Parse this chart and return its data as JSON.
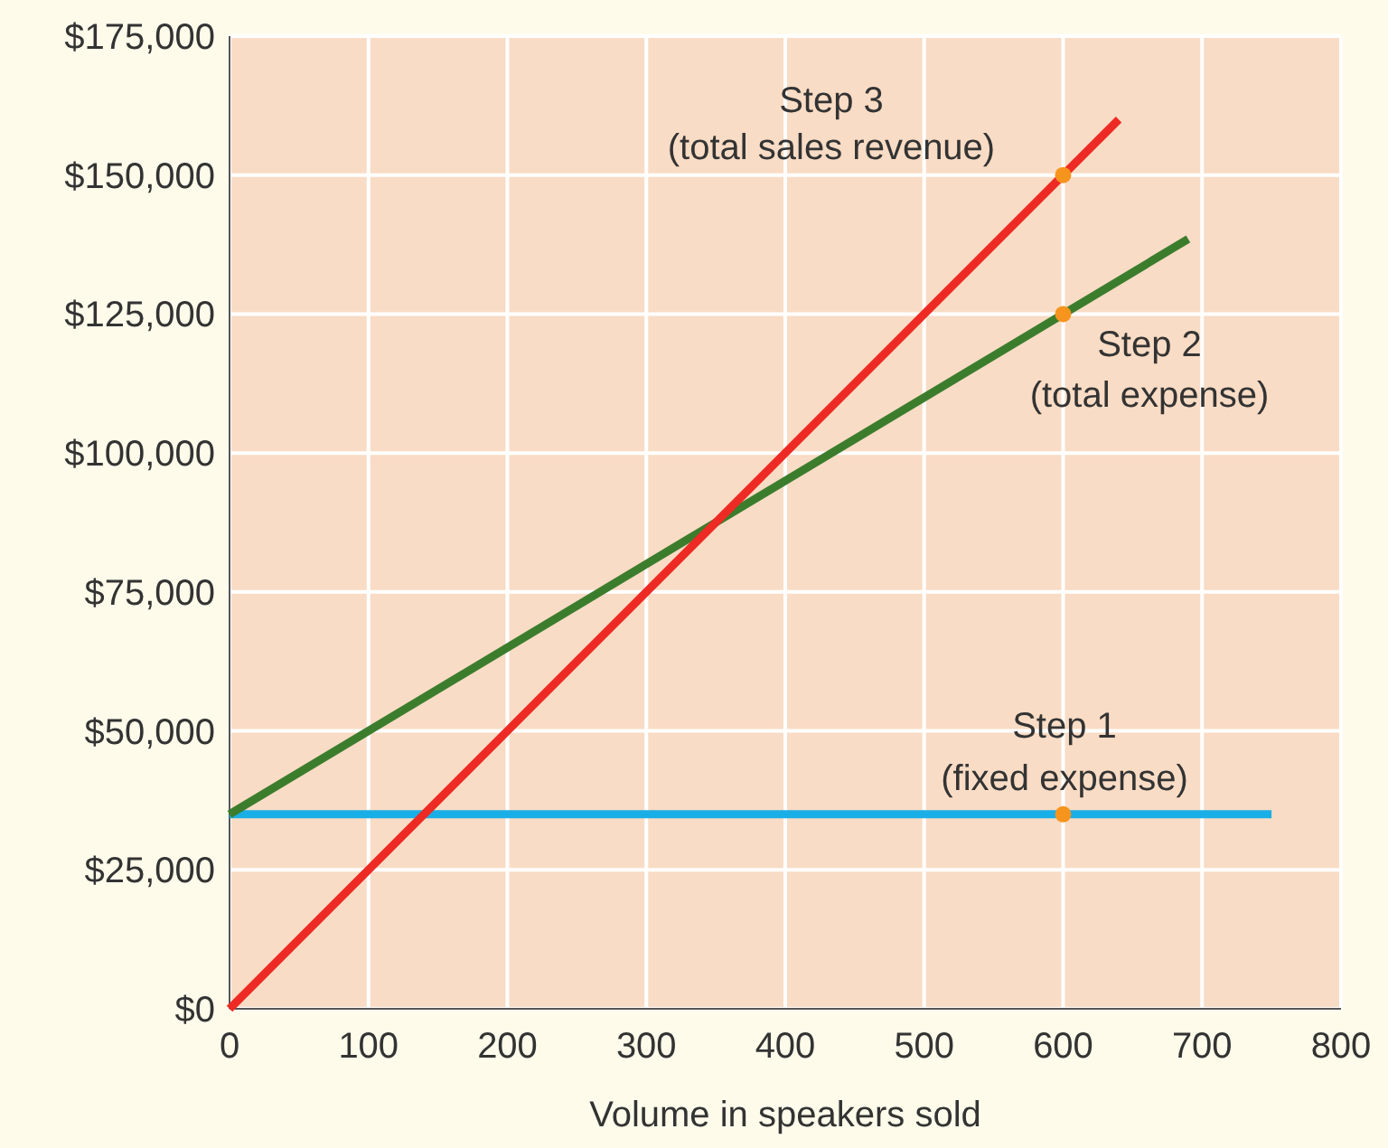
{
  "chart_data": {
    "type": "line",
    "xlabel": "Volume in speakers sold",
    "xlim": [
      0,
      800
    ],
    "xticks": [
      0,
      100,
      200,
      300,
      400,
      500,
      600,
      700,
      800
    ],
    "ylim": [
      0,
      175000
    ],
    "yticks": [
      {
        "value": 0,
        "label": "$0"
      },
      {
        "value": 25000,
        "label": "$25,000"
      },
      {
        "value": 50000,
        "label": "$50,000"
      },
      {
        "value": 75000,
        "label": "$75,000"
      },
      {
        "value": 100000,
        "label": "$100,000"
      },
      {
        "value": 125000,
        "label": "$125,000"
      },
      {
        "value": 150000,
        "label": "$150,000"
      },
      {
        "value": 175000,
        "label": "$175,000"
      }
    ],
    "grid": true,
    "series": [
      {
        "color": "#1aaee6",
        "x": [
          0,
          750
        ],
        "values": [
          35000,
          35000
        ]
      },
      {
        "color": "#3b7d2d",
        "x": [
          0,
          690
        ],
        "values": [
          35000,
          138500
        ]
      },
      {
        "color": "#ee2a24",
        "x": [
          0,
          640
        ],
        "values": [
          0,
          160000
        ]
      },
      {
        "type": "scatter",
        "color": "#f7941d",
        "marker": "circle",
        "x": [
          600,
          600,
          600
        ],
        "values": [
          35000,
          125000,
          150000
        ]
      }
    ],
    "annotations": [
      "Step 3\n(total sales revenue)",
      "Step 2\n(total expense)",
      "Step 1\n(fixed expense)"
    ]
  }
}
